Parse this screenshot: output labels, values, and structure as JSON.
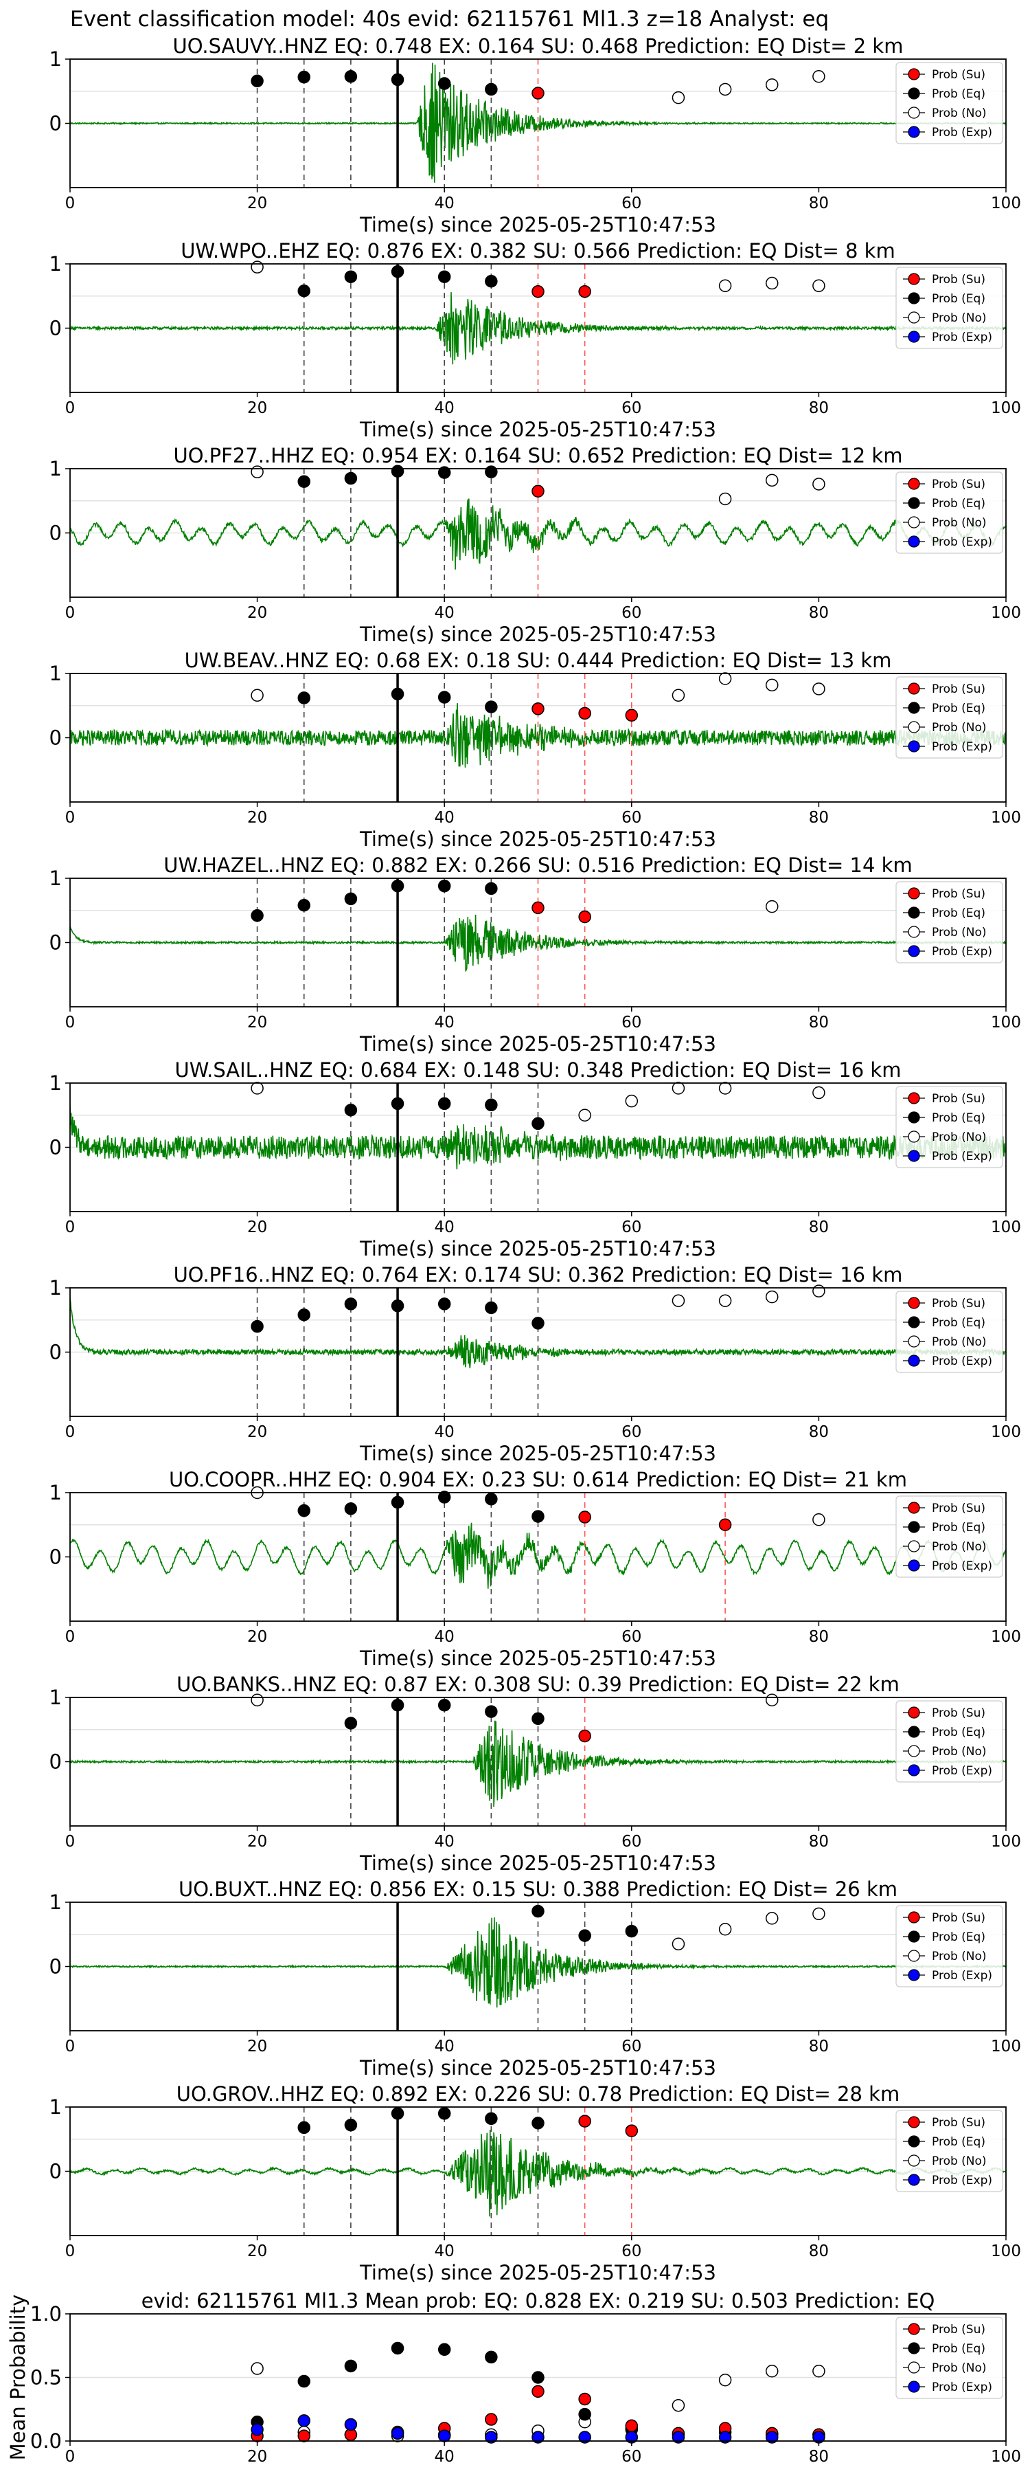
{
  "figure_title": "Event classification model: 40s evid: 62115761 Ml1.3 z=18 Analyst: eq",
  "legend_labels": [
    "Prob (Su)",
    "Prob (Eq)",
    "Prob (No)",
    "Prob (Exp)"
  ],
  "colors": {
    "su": "#ff0000",
    "eq": "#000000",
    "no": "#ffffff",
    "exp": "#0000ff",
    "trace": "#008000"
  },
  "chart_data": [
    {
      "type": "scatter",
      "title": "UO.SAUVY..HNZ   EQ: 0.748  EX: 0.164  SU: 0.468   Prediction: EQ    Dist= 2 km",
      "xlabel": "Time(s) since 2025-05-25T10:47:53",
      "xlim": [
        0,
        100
      ],
      "ylim": [
        -1,
        1
      ],
      "xticks": [
        0,
        20,
        40,
        60,
        80,
        100
      ],
      "yticks": [
        1,
        0
      ],
      "pick": 35,
      "eq": [
        [
          20,
          0.66
        ],
        [
          25,
          0.72
        ],
        [
          30,
          0.73
        ],
        [
          35,
          0.68
        ],
        [
          40,
          0.62
        ],
        [
          45,
          0.53
        ]
      ],
      "su": [
        [
          50,
          0.47
        ]
      ],
      "no": [
        [
          65,
          0.4
        ],
        [
          70,
          0.53
        ],
        [
          75,
          0.6
        ],
        [
          80,
          0.73
        ]
      ],
      "exp": [],
      "burst_start": 37,
      "burst_peak": 38.5,
      "burst_amp": 1.0,
      "noise": 0.01,
      "osc": 0,
      "spike_start": 0
    },
    {
      "type": "scatter",
      "title": "UW.WPO..EHZ   EQ: 0.876  EX: 0.382  SU: 0.566   Prediction: EQ    Dist= 8 km",
      "xlabel": "Time(s) since 2025-05-25T10:47:53",
      "xlim": [
        0,
        100
      ],
      "ylim": [
        -1,
        1
      ],
      "xticks": [
        0,
        20,
        40,
        60,
        80,
        100
      ],
      "yticks": [
        1,
        0
      ],
      "pick": 35,
      "eq": [
        [
          25,
          0.58
        ],
        [
          30,
          0.8
        ],
        [
          35,
          0.88
        ],
        [
          40,
          0.8
        ],
        [
          45,
          0.73
        ]
      ],
      "su": [
        [
          50,
          0.57
        ],
        [
          55,
          0.57
        ]
      ],
      "no": [
        [
          20,
          0.95
        ],
        [
          70,
          0.66
        ],
        [
          75,
          0.7
        ],
        [
          80,
          0.66
        ]
      ],
      "exp": [],
      "burst_start": 39,
      "burst_peak": 41,
      "burst_amp": 0.65,
      "noise": 0.02,
      "osc": 0,
      "spike_start": 0
    },
    {
      "type": "scatter",
      "title": "UO.PF27..HHZ   EQ: 0.954  EX: 0.164  SU: 0.652   Prediction: EQ    Dist= 12 km",
      "xlabel": "Time(s) since 2025-05-25T10:47:53",
      "xlim": [
        0,
        100
      ],
      "ylim": [
        -1,
        1
      ],
      "xticks": [
        0,
        20,
        40,
        60,
        80,
        100
      ],
      "yticks": [
        1,
        0
      ],
      "pick": 35,
      "eq": [
        [
          25,
          0.8
        ],
        [
          30,
          0.85
        ],
        [
          35,
          0.96
        ],
        [
          40,
          0.94
        ],
        [
          45,
          0.95
        ]
      ],
      "su": [
        [
          50,
          0.65
        ]
      ],
      "no": [
        [
          20,
          0.95
        ],
        [
          70,
          0.53
        ],
        [
          75,
          0.82
        ],
        [
          80,
          0.76
        ]
      ],
      "exp": [],
      "burst_start": 40,
      "burst_peak": 41.5,
      "burst_amp": 0.6,
      "noise": 0.03,
      "osc": 0.12,
      "spike_start": 0
    },
    {
      "type": "scatter",
      "title": "UW.BEAV..HNZ   EQ: 0.68  EX: 0.18  SU: 0.444   Prediction: EQ    Dist= 13 km",
      "xlabel": "Time(s) since 2025-05-25T10:47:53",
      "xlim": [
        0,
        100
      ],
      "ylim": [
        -1,
        1
      ],
      "xticks": [
        0,
        20,
        40,
        60,
        80,
        100
      ],
      "yticks": [
        1,
        0
      ],
      "pick": 35,
      "eq": [
        [
          25,
          0.62
        ],
        [
          35,
          0.68
        ],
        [
          40,
          0.63
        ],
        [
          45,
          0.48
        ]
      ],
      "su": [
        [
          50,
          0.45
        ],
        [
          55,
          0.38
        ],
        [
          60,
          0.35
        ]
      ],
      "no": [
        [
          20,
          0.66
        ],
        [
          65,
          0.66
        ],
        [
          70,
          0.92
        ],
        [
          75,
          0.82
        ],
        [
          80,
          0.76
        ]
      ],
      "exp": [],
      "burst_start": 40,
      "burst_peak": 41.5,
      "burst_amp": 0.55,
      "noise": 0.12,
      "osc": 0,
      "spike_start": 0
    },
    {
      "type": "scatter",
      "title": "UW.HAZEL..HNZ   EQ: 0.882  EX: 0.266  SU: 0.516   Prediction: EQ    Dist= 14 km",
      "xlabel": "Time(s) since 2025-05-25T10:47:53",
      "xlim": [
        0,
        100
      ],
      "ylim": [
        -1,
        1
      ],
      "xticks": [
        0,
        20,
        40,
        60,
        80,
        100
      ],
      "yticks": [
        1,
        0
      ],
      "pick": 35,
      "eq": [
        [
          20,
          0.42
        ],
        [
          25,
          0.58
        ],
        [
          30,
          0.68
        ],
        [
          35,
          0.88
        ],
        [
          40,
          0.88
        ],
        [
          45,
          0.84
        ]
      ],
      "su": [
        [
          50,
          0.54
        ],
        [
          55,
          0.4
        ]
      ],
      "no": [
        [
          75,
          0.56
        ]
      ],
      "exp": [],
      "burst_start": 40,
      "burst_peak": 42,
      "burst_amp": 0.55,
      "noise": 0.015,
      "osc": 0,
      "spike_start": 0.25
    },
    {
      "type": "scatter",
      "title": "UW.SAIL..HNZ   EQ: 0.684  EX: 0.148  SU: 0.348   Prediction: EQ    Dist= 16 km",
      "xlabel": "Time(s) since 2025-05-25T10:47:53",
      "xlim": [
        0,
        100
      ],
      "ylim": [
        -1,
        1
      ],
      "xticks": [
        0,
        20,
        40,
        60,
        80,
        100
      ],
      "yticks": [
        1,
        0
      ],
      "pick": 35,
      "eq": [
        [
          30,
          0.58
        ],
        [
          35,
          0.68
        ],
        [
          40,
          0.68
        ],
        [
          45,
          0.66
        ],
        [
          50,
          0.37
        ]
      ],
      "su": [],
      "no": [
        [
          20,
          0.92
        ],
        [
          55,
          0.5
        ],
        [
          60,
          0.72
        ],
        [
          65,
          0.92
        ],
        [
          70,
          0.92
        ],
        [
          80,
          0.85
        ]
      ],
      "exp": [],
      "burst_start": 40,
      "burst_peak": 41.5,
      "burst_amp": 0.4,
      "noise": 0.18,
      "osc": 0,
      "spike_start": 0.5
    },
    {
      "type": "scatter",
      "title": "UO.PF16..HNZ   EQ: 0.764  EX: 0.174  SU: 0.362   Prediction: EQ    Dist= 16 km",
      "xlabel": "Time(s) since 2025-05-25T10:47:53",
      "xlim": [
        0,
        100
      ],
      "ylim": [
        -1,
        1
      ],
      "xticks": [
        0,
        20,
        40,
        60,
        80,
        100
      ],
      "yticks": [
        1,
        0
      ],
      "pick": 35,
      "eq": [
        [
          20,
          0.4
        ],
        [
          25,
          0.58
        ],
        [
          30,
          0.75
        ],
        [
          35,
          0.72
        ],
        [
          40,
          0.75
        ],
        [
          45,
          0.69
        ],
        [
          50,
          0.45
        ]
      ],
      "su": [],
      "no": [
        [
          65,
          0.8
        ],
        [
          70,
          0.8
        ],
        [
          75,
          0.86
        ],
        [
          80,
          0.95
        ]
      ],
      "exp": [],
      "burst_start": 40,
      "burst_peak": 42,
      "burst_amp": 0.25,
      "noise": 0.04,
      "osc": 0,
      "spike_start": 0.8
    },
    {
      "type": "scatter",
      "title": "UO.COOPR..HHZ   EQ: 0.904  EX: 0.23  SU: 0.614   Prediction: EQ    Dist= 21 km",
      "xlabel": "Time(s) since 2025-05-25T10:47:53",
      "xlim": [
        0,
        100
      ],
      "ylim": [
        -1,
        1
      ],
      "xticks": [
        0,
        20,
        40,
        60,
        80,
        100
      ],
      "yticks": [
        1,
        0
      ],
      "pick": 35,
      "eq": [
        [
          25,
          0.72
        ],
        [
          30,
          0.75
        ],
        [
          35,
          0.85
        ],
        [
          40,
          0.93
        ],
        [
          45,
          0.9
        ],
        [
          50,
          0.63
        ]
      ],
      "su": [
        [
          55,
          0.62
        ],
        [
          70,
          0.5
        ]
      ],
      "no": [
        [
          20,
          1.0
        ],
        [
          80,
          0.58
        ]
      ],
      "exp": [],
      "burst_start": 40,
      "burst_peak": 41.5,
      "burst_amp": 0.5,
      "noise": 0.02,
      "osc": 0.17,
      "spike_start": 0
    },
    {
      "type": "scatter",
      "title": "UO.BANKS..HNZ   EQ: 0.87  EX: 0.308  SU: 0.39   Prediction: EQ    Dist= 22 km",
      "xlabel": "Time(s) since 2025-05-25T10:47:53",
      "xlim": [
        0,
        100
      ],
      "ylim": [
        -1,
        1
      ],
      "xticks": [
        0,
        20,
        40,
        60,
        80,
        100
      ],
      "yticks": [
        1,
        0
      ],
      "pick": 35,
      "eq": [
        [
          30,
          0.6
        ],
        [
          35,
          0.88
        ],
        [
          40,
          0.88
        ],
        [
          45,
          0.78
        ],
        [
          50,
          0.67
        ]
      ],
      "su": [
        [
          55,
          0.4
        ]
      ],
      "no": [
        [
          20,
          0.96
        ],
        [
          75,
          0.96
        ]
      ],
      "exp": [],
      "burst_start": 43,
      "burst_peak": 45,
      "burst_amp": 0.75,
      "noise": 0.015,
      "osc": 0,
      "spike_start": 0
    },
    {
      "type": "scatter",
      "title": "UO.BUXT..HNZ   EQ: 0.856  EX: 0.15  SU: 0.388   Prediction: EQ    Dist= 26 km",
      "xlabel": "Time(s) since 2025-05-25T10:47:53",
      "xlim": [
        0,
        100
      ],
      "ylim": [
        -1,
        1
      ],
      "xticks": [
        0,
        20,
        40,
        60,
        80,
        100
      ],
      "yticks": [
        1,
        0
      ],
      "pick": 35,
      "eq": [
        [
          50,
          0.86
        ],
        [
          55,
          0.48
        ],
        [
          60,
          0.55
        ]
      ],
      "su": [],
      "no": [
        [
          65,
          0.35
        ],
        [
          70,
          0.58
        ],
        [
          75,
          0.75
        ],
        [
          80,
          0.82
        ]
      ],
      "exp": [],
      "burst_start": 40,
      "burst_peak": 45,
      "burst_amp": 0.8,
      "noise": 0.012,
      "osc": 0,
      "spike_start": 0
    },
    {
      "type": "scatter",
      "title": "UO.GROV..HHZ   EQ: 0.892  EX: 0.226  SU: 0.78   Prediction: EQ    Dist= 28 km",
      "xlabel": "Time(s) since 2025-05-25T10:47:53",
      "xlim": [
        0,
        100
      ],
      "ylim": [
        -1,
        1
      ],
      "xticks": [
        0,
        20,
        40,
        60,
        80,
        100
      ],
      "yticks": [
        1,
        0
      ],
      "pick": 35,
      "eq": [
        [
          25,
          0.68
        ],
        [
          30,
          0.72
        ],
        [
          35,
          0.9
        ],
        [
          40,
          0.9
        ],
        [
          45,
          0.82
        ],
        [
          50,
          0.75
        ]
      ],
      "su": [
        [
          55,
          0.78
        ],
        [
          60,
          0.63
        ]
      ],
      "no": [],
      "exp": [],
      "burst_start": 40,
      "burst_peak": 45,
      "burst_amp": 0.75,
      "noise": 0.015,
      "osc": 0.03,
      "spike_start": 0
    },
    {
      "type": "scatter",
      "title": "evid: 62115761  Ml1.3   Mean prob:   EQ: 0.828  EX: 0.219  SU: 0.503   Prediction: EQ",
      "xlabel": "",
      "ylabel": "Mean Probability",
      "xlim": [
        0,
        100
      ],
      "ylim": [
        0,
        1
      ],
      "xticks": [
        0,
        20,
        40,
        60,
        80,
        100
      ],
      "yticks": [
        1.0,
        0.5,
        0.0
      ],
      "ytick_labels": [
        "1.0",
        "0.5",
        "0.0"
      ],
      "pick": null,
      "eq": [
        [
          20,
          0.15
        ],
        [
          25,
          0.47
        ],
        [
          30,
          0.59
        ],
        [
          35,
          0.73
        ],
        [
          40,
          0.72
        ],
        [
          45,
          0.66
        ],
        [
          50,
          0.5
        ],
        [
          55,
          0.21
        ],
        [
          60,
          0.1
        ],
        [
          65,
          0.05
        ],
        [
          70,
          0.07
        ],
        [
          75,
          0.05
        ],
        [
          80,
          0.05
        ]
      ],
      "su": [
        [
          20,
          0.04
        ],
        [
          25,
          0.04
        ],
        [
          30,
          0.05
        ],
        [
          35,
          0.07
        ],
        [
          40,
          0.1
        ],
        [
          45,
          0.17
        ],
        [
          50,
          0.39
        ],
        [
          55,
          0.33
        ],
        [
          60,
          0.12
        ],
        [
          65,
          0.06
        ],
        [
          70,
          0.1
        ],
        [
          75,
          0.06
        ],
        [
          80,
          0.05
        ]
      ],
      "no": [
        [
          20,
          0.57
        ],
        [
          25,
          0.07
        ],
        [
          30,
          0.05
        ],
        [
          35,
          0.04
        ],
        [
          40,
          0.05
        ],
        [
          45,
          0.05
        ],
        [
          50,
          0.08
        ],
        [
          55,
          0.15
        ],
        [
          60,
          0.09
        ],
        [
          65,
          0.28
        ],
        [
          70,
          0.48
        ],
        [
          75,
          0.55
        ],
        [
          80,
          0.55
        ]
      ],
      "exp": [
        [
          20,
          0.09
        ],
        [
          25,
          0.16
        ],
        [
          30,
          0.13
        ],
        [
          35,
          0.06
        ],
        [
          40,
          0.04
        ],
        [
          45,
          0.03
        ],
        [
          50,
          0.03
        ],
        [
          55,
          0.03
        ],
        [
          60,
          0.03
        ],
        [
          65,
          0.03
        ],
        [
          70,
          0.03
        ],
        [
          75,
          0.03
        ],
        [
          80,
          0.03
        ]
      ],
      "burst_start": null
    }
  ]
}
